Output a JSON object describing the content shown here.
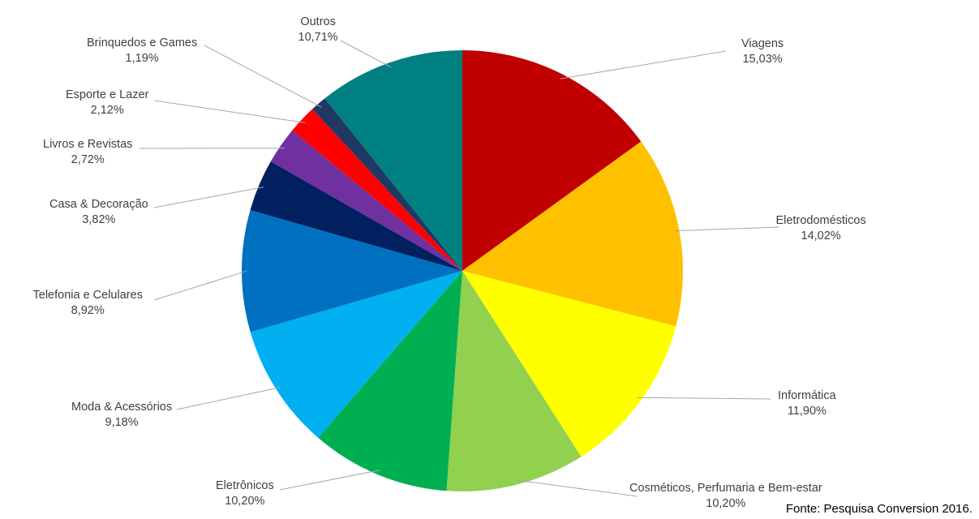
{
  "chart_data": {
    "type": "pie",
    "categories": [
      "Viagens",
      "Eletrodomésticos",
      "Informática",
      "Cosméticos, Perfumaria e Bem-estar",
      "Eletrônicos",
      "Moda & Acessórios",
      "Telefonia e Celulares",
      "Casa & Decoração",
      "Livros e Revistas",
      "Esporte e Lazer",
      "Brinquedos e Games",
      "Outros"
    ],
    "values": [
      15.03,
      14.02,
      11.9,
      10.2,
      10.2,
      9.18,
      8.92,
      3.82,
      2.72,
      2.12,
      1.19,
      10.71
    ],
    "value_labels": [
      "15,03%",
      "14,02%",
      "11,90%",
      "10,20%",
      "10,20%",
      "9,18%",
      "8,92%",
      "3,82%",
      "2,72%",
      "2,12%",
      "1,19%",
      "10,71%"
    ],
    "colors": [
      "#c00000",
      "#ffc000",
      "#ffff00",
      "#92d050",
      "#00b050",
      "#00b0f0",
      "#0070c0",
      "#002060",
      "#7030a0",
      "#ff0000",
      "#1f3864",
      "#008080"
    ],
    "start": "top, clockwise",
    "legend": "none (labels with leader lines)"
  },
  "source": "Fonte: Pesquisa Conversion 2016."
}
